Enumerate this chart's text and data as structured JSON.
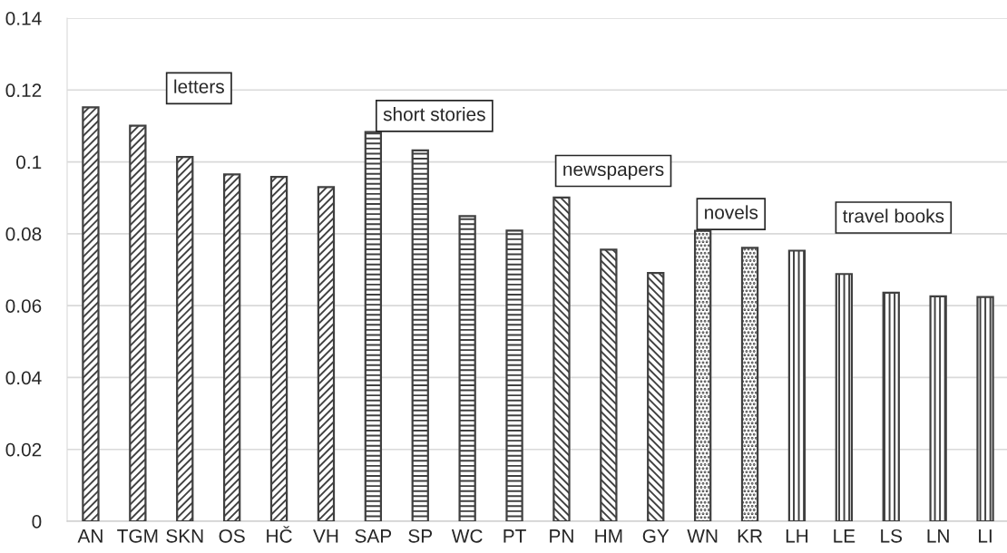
{
  "chart_data": {
    "type": "bar",
    "categories": [
      "AN",
      "TGM",
      "SKN",
      "OS",
      "HČ",
      "VH",
      "SAP",
      "SP",
      "WC",
      "PT",
      "PN",
      "HM",
      "GY",
      "WN",
      "KR",
      "LH",
      "LE",
      "LS",
      "LN",
      "LI"
    ],
    "series": [
      {
        "color": "#404040",
        "values": [
          0.1152,
          0.1101,
          0.1014,
          0.0965,
          0.0958,
          0.093,
          null,
          null,
          null,
          null,
          null,
          null,
          null,
          null,
          null,
          null,
          null,
          null,
          null,
          null
        ]
      },
      {
        "color": "#404040",
        "values": [
          null,
          null,
          null,
          null,
          null,
          null,
          0.1083,
          0.1032,
          0.0849,
          0.0809,
          null,
          null,
          null,
          null,
          null,
          null,
          null,
          null,
          null,
          null
        ]
      },
      {
        "color": "#404040",
        "values": [
          null,
          null,
          null,
          null,
          null,
          null,
          null,
          null,
          null,
          null,
          0.0901,
          0.0756,
          0.0691,
          null,
          null,
          null,
          null,
          null,
          null,
          null
        ]
      },
      {
        "color": "#404040",
        "values": [
          null,
          null,
          null,
          null,
          null,
          null,
          null,
          null,
          null,
          null,
          null,
          null,
          null,
          0.0808,
          0.0761,
          null,
          null,
          null,
          null,
          null
        ]
      },
      {
        "color": "#404040",
        "values": [
          null,
          null,
          null,
          null,
          null,
          null,
          null,
          null,
          null,
          null,
          null,
          null,
          null,
          null,
          null,
          0.0753,
          0.0688,
          0.0636,
          0.0626,
          0.0624
        ]
      }
    ],
    "ylim": [
      0,
      0.14
    ],
    "yticks": [
      0,
      0.02,
      0.04,
      0.06,
      0.08,
      0.1,
      0.12,
      0.14
    ],
    "grid": "y",
    "annotations": [
      "letters",
      "short stories",
      "newspapers",
      "novels",
      "travel books"
    ]
  }
}
